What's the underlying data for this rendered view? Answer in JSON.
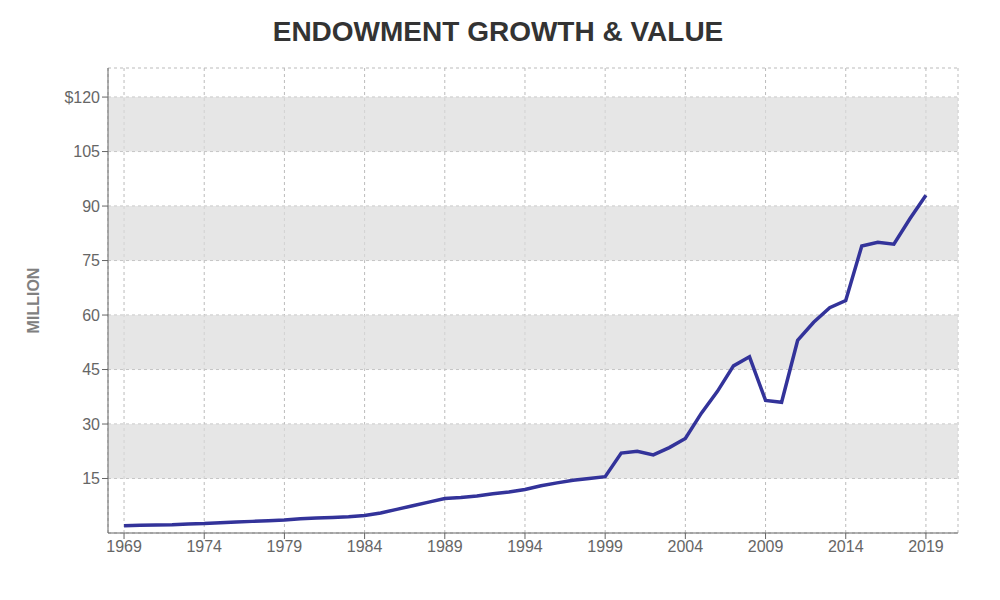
{
  "chart_data": {
    "type": "line",
    "title": "ENDOWMENT GROWTH & VALUE",
    "ylabel": "MILLION",
    "color": "#33339a",
    "grid": true,
    "x": [
      1969,
      1970,
      1971,
      1972,
      1973,
      1974,
      1975,
      1976,
      1977,
      1978,
      1979,
      1980,
      1981,
      1982,
      1983,
      1984,
      1985,
      1986,
      1987,
      1988,
      1989,
      1990,
      1991,
      1992,
      1993,
      1994,
      1995,
      1996,
      1997,
      1998,
      1999,
      2000,
      2001,
      2002,
      2003,
      2004,
      2005,
      2006,
      2007,
      2008,
      2009,
      2010,
      2011,
      2012,
      2013,
      2014,
      2015,
      2016,
      2017,
      2018,
      2019
    ],
    "values": [
      2.0,
      2.1,
      2.2,
      2.3,
      2.5,
      2.6,
      2.8,
      3.0,
      3.2,
      3.4,
      3.6,
      3.9,
      4.1,
      4.3,
      4.5,
      4.8,
      5.5,
      6.5,
      7.5,
      8.5,
      9.5,
      9.8,
      10.2,
      10.8,
      11.3,
      12.0,
      13.0,
      13.8,
      14.5,
      15.0,
      15.5,
      22.0,
      22.5,
      21.5,
      23.5,
      26.0,
      33.0,
      39.0,
      46.0,
      48.5,
      36.5,
      36.0,
      53.0,
      58.0,
      62.0,
      64.0,
      79.0,
      80.0,
      79.5,
      86.5,
      93.0
    ],
    "xlim": [
      1968,
      2021
    ],
    "xticks": [
      1969,
      1974,
      1979,
      1984,
      1989,
      1994,
      1999,
      2004,
      2009,
      2014,
      2019
    ],
    "ylim": [
      0,
      128
    ],
    "yticks": [
      15,
      30,
      45,
      60,
      75,
      90,
      105,
      {
        "value": 120,
        "label": "$120"
      }
    ]
  }
}
